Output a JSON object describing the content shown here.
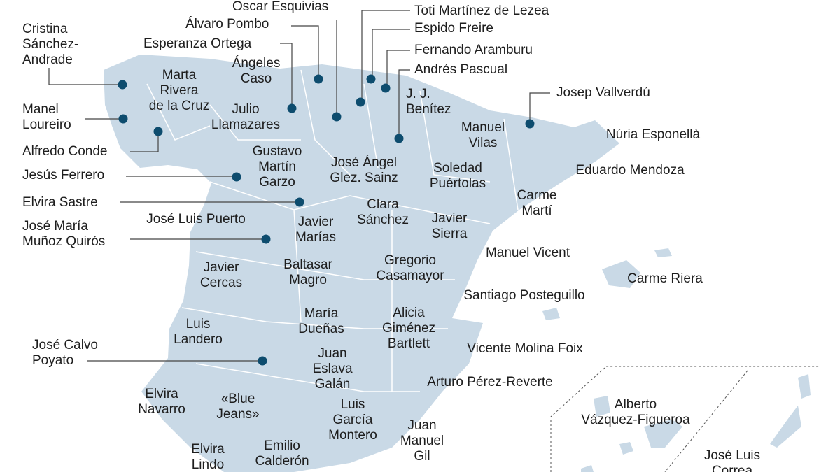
{
  "colors": {
    "land": "#c9d9e6",
    "dot": "#0d4c6e",
    "leader": "#444444",
    "text": "#1e1e1e"
  },
  "labels": [
    {
      "name": "cristina-sanchez-andrade",
      "lines": [
        "Cristina",
        "Sánchez-",
        "Andrade"
      ]
    },
    {
      "name": "manel-loureiro",
      "lines": [
        "Manel",
        "Loureiro"
      ]
    },
    {
      "name": "alfredo-conde",
      "lines": [
        "Alfredo Conde"
      ]
    },
    {
      "name": "jesus-ferrero",
      "lines": [
        "Jesús Ferrero"
      ]
    },
    {
      "name": "elvira-sastre",
      "lines": [
        "Elvira Sastre"
      ]
    },
    {
      "name": "jose-maria-munoz-quiros",
      "lines": [
        "José María",
        "Muñoz Quirós"
      ]
    },
    {
      "name": "jose-calvo-poyato",
      "lines": [
        "José Calvo",
        "Poyato"
      ]
    },
    {
      "name": "oscar-esquivias",
      "lines": [
        "Oscar Esquivias"
      ]
    },
    {
      "name": "alvaro-pombo",
      "lines": [
        "Álvaro Pombo"
      ]
    },
    {
      "name": "esperanza-ortega",
      "lines": [
        "Esperanza Ortega"
      ]
    },
    {
      "name": "toti-martinez-de-lezea",
      "lines": [
        "Toti Martínez de Lezea"
      ]
    },
    {
      "name": "espido-freire",
      "lines": [
        "Espido Freire"
      ]
    },
    {
      "name": "fernando-aramburu",
      "lines": [
        "Fernando Aramburu"
      ]
    },
    {
      "name": "andres-pascual",
      "lines": [
        "Andrés Pascual"
      ]
    },
    {
      "name": "josep-vallverdu",
      "lines": [
        "Josep Vallverdú"
      ]
    },
    {
      "name": "marta-rivera-de-la-cruz",
      "lines": [
        "Marta",
        "Rivera",
        "de la Cruz"
      ]
    },
    {
      "name": "angeles-caso",
      "lines": [
        "Ángeles",
        "Caso"
      ]
    },
    {
      "name": "julio-llamazares",
      "lines": [
        "Julio",
        "Llamazares"
      ]
    },
    {
      "name": "jj-benitez",
      "lines": [
        "J. J.",
        "Benítez"
      ]
    },
    {
      "name": "manuel-vilas",
      "lines": [
        "Manuel",
        "Vilas"
      ]
    },
    {
      "name": "nuria-esponella",
      "lines": [
        "Núria Esponellà"
      ]
    },
    {
      "name": "eduardo-mendoza",
      "lines": [
        "Eduardo Mendoza"
      ]
    },
    {
      "name": "gustavo-martin-garzo",
      "lines": [
        "Gustavo",
        "Martín",
        "Garzo"
      ]
    },
    {
      "name": "jose-angel-glez-sainz",
      "lines": [
        "José Ángel",
        "Glez. Sainz"
      ]
    },
    {
      "name": "soledad-puertolas",
      "lines": [
        "Soledad",
        "Puértolas"
      ]
    },
    {
      "name": "carme-marti",
      "lines": [
        "Carme",
        "Martí"
      ]
    },
    {
      "name": "clara-sanchez",
      "lines": [
        "Clara",
        "Sánchez"
      ]
    },
    {
      "name": "jose-luis-puerto",
      "lines": [
        "José Luis Puerto"
      ]
    },
    {
      "name": "javier-marias",
      "lines": [
        "Javier",
        "Marías"
      ]
    },
    {
      "name": "javier-sierra",
      "lines": [
        "Javier",
        "Sierra"
      ]
    },
    {
      "name": "manuel-vicent",
      "lines": [
        "Manuel Vicent"
      ]
    },
    {
      "name": "javier-cercas",
      "lines": [
        "Javier",
        "Cercas"
      ]
    },
    {
      "name": "baltasar-magro",
      "lines": [
        "Baltasar",
        "Magro"
      ]
    },
    {
      "name": "gregorio-casamayor",
      "lines": [
        "Gregorio",
        "Casamayor"
      ]
    },
    {
      "name": "carme-riera",
      "lines": [
        "Carme Riera"
      ]
    },
    {
      "name": "santiago-posteguillo",
      "lines": [
        "Santiago Posteguillo"
      ]
    },
    {
      "name": "maria-duenas",
      "lines": [
        "María",
        "Dueñas"
      ]
    },
    {
      "name": "alicia-gimenez-bartlett",
      "lines": [
        "Alicia",
        "Giménez",
        "Bartlett"
      ]
    },
    {
      "name": "luis-landero",
      "lines": [
        "Luis",
        "Landero"
      ]
    },
    {
      "name": "vicente-molina-foix",
      "lines": [
        "Vicente Molina Foix"
      ]
    },
    {
      "name": "juan-eslava-galan",
      "lines": [
        "Juan",
        "Eslava",
        "Galán"
      ]
    },
    {
      "name": "arturo-perez-reverte",
      "lines": [
        "Arturo Pérez-Reverte"
      ]
    },
    {
      "name": "elvira-navarro",
      "lines": [
        "Elvira",
        "Navarro"
      ]
    },
    {
      "name": "blue-jeans",
      "lines": [
        "«Blue",
        "Jeans»"
      ]
    },
    {
      "name": "alberto-vazquez-figueroa",
      "lines": [
        "Alberto",
        "Vázquez-Figueroa"
      ]
    },
    {
      "name": "luis-garcia-montero",
      "lines": [
        "Luis",
        "García",
        "Montero"
      ]
    },
    {
      "name": "juan-manuel-gil",
      "lines": [
        "Juan",
        "Manuel",
        "Gil"
      ]
    },
    {
      "name": "elvira-lindo",
      "lines": [
        "Elvira",
        "Lindo"
      ]
    },
    {
      "name": "emilio-calderon",
      "lines": [
        "Emilio",
        "Calderón"
      ]
    },
    {
      "name": "jose-luis-correa",
      "lines": [
        "José Luis",
        "Correa"
      ]
    }
  ]
}
